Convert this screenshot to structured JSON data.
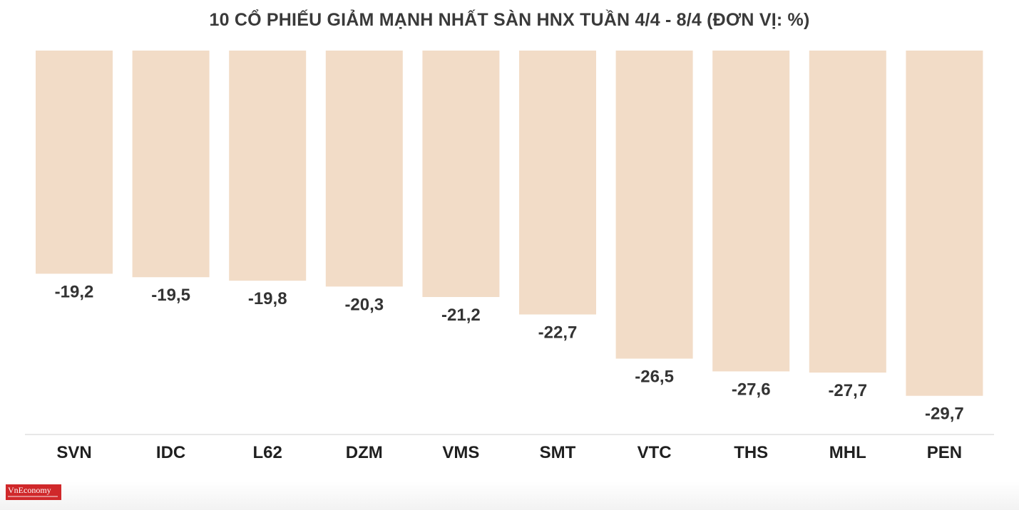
{
  "title": "10 CỔ PHIẾU GIẢM MẠNH NHẤT SÀN HNX TUẦN 4/4 - 8/4 (ĐƠN VỊ: %)",
  "logo_text": "VnEconomy",
  "colors": {
    "bar": "#f2dcc7",
    "axis": "#e0e0e0",
    "logo": "#d0282a"
  },
  "chart_data": {
    "type": "bar",
    "orientation": "vertical",
    "baseline": "top",
    "categories": [
      "SVN",
      "IDC",
      "L62",
      "DZM",
      "VMS",
      "SMT",
      "VTC",
      "THS",
      "MHL",
      "PEN"
    ],
    "values": [
      -19.2,
      -19.5,
      -19.8,
      -20.3,
      -21.2,
      -22.7,
      -26.5,
      -27.6,
      -27.7,
      -29.7
    ],
    "value_labels": [
      "-19,2",
      "-19,5",
      "-19,8",
      "-20,3",
      "-21,2",
      "-22,7",
      "-26,5",
      "-27,6",
      "-27,7",
      "-29,7"
    ],
    "title": "10 CỔ PHIẾU GIẢM MẠNH NHẤT SÀN HNX TUẦN 4/4 - 8/4 (ĐƠN VỊ: %)",
    "xlabel": "",
    "ylabel": "",
    "ylim": [
      -34,
      0
    ],
    "grid": false,
    "legend": "none"
  }
}
